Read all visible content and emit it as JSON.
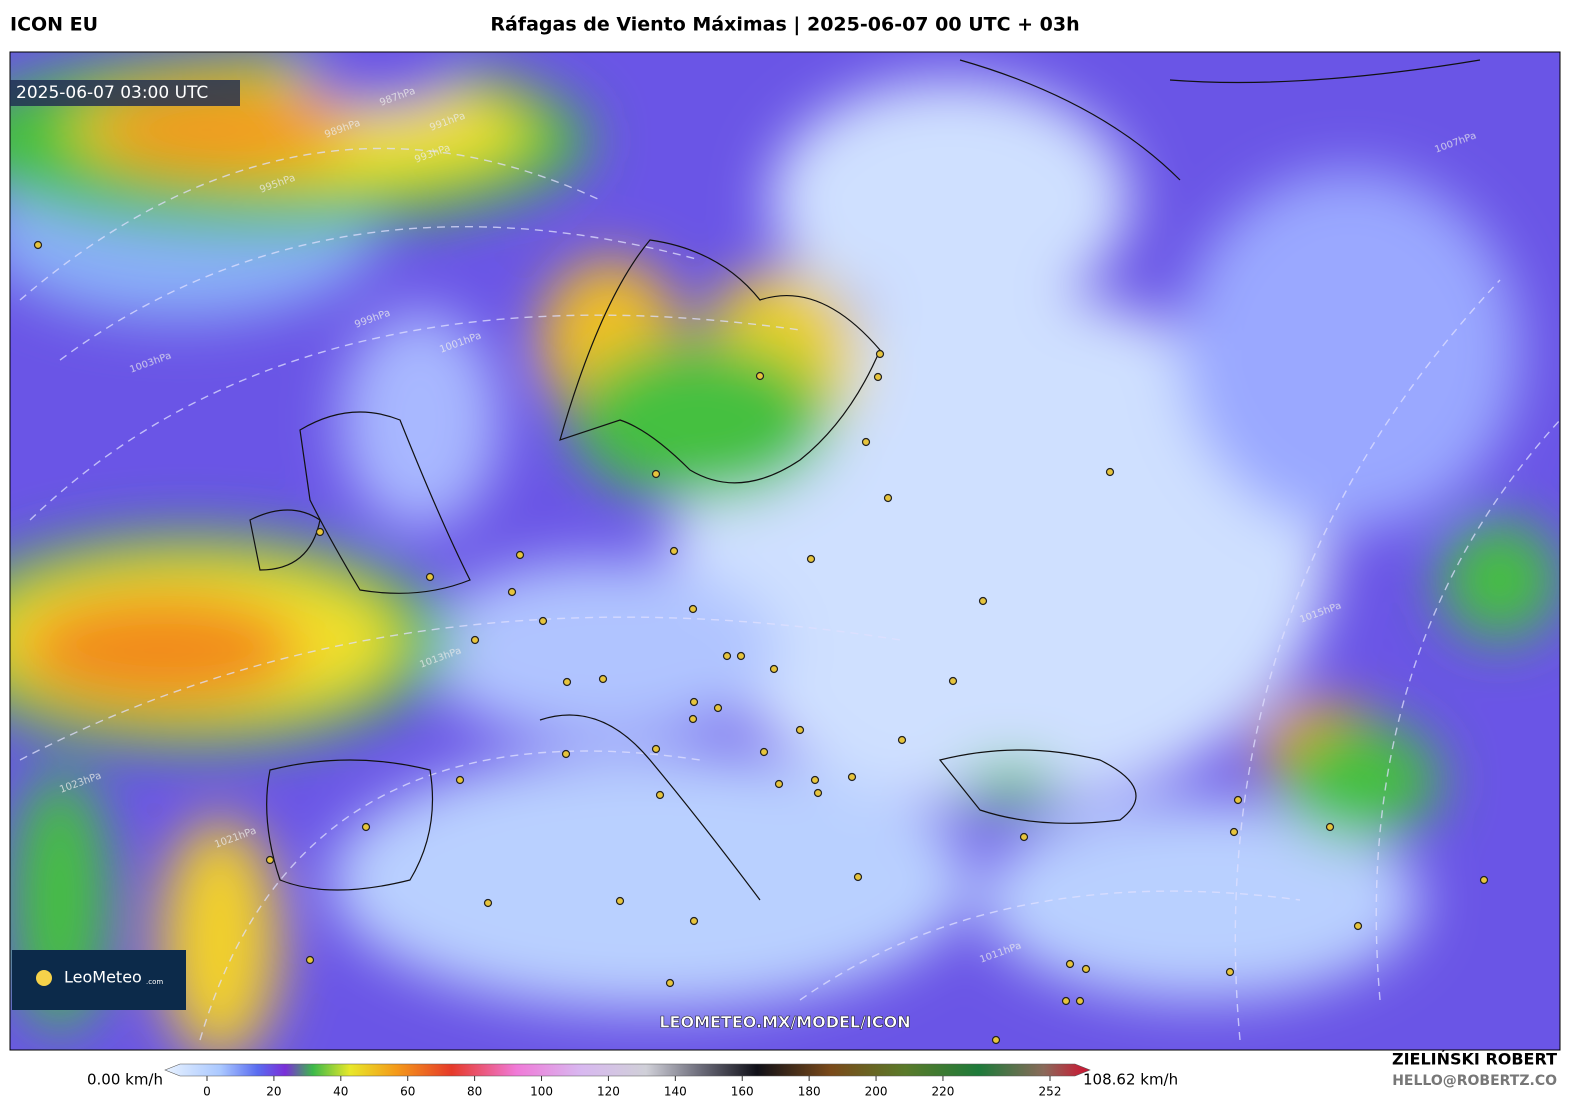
{
  "header": {
    "model": "ICON EU",
    "title": "Ráfagas de Viento Máximas | 2025-06-07 00 UTC + 03h"
  },
  "map": {
    "timestamp": "2025-06-07 03:00 UTC",
    "watermark": "LEOMETEO.MX/MODEL/ICON",
    "logo": {
      "name": "LeoMeteo",
      "suffix": ".com"
    },
    "isobar_labels": [
      "987hPa",
      "989hPa",
      "991hPa",
      "993hPa",
      "995hPa",
      "999hPa",
      "1001hPa",
      "1003hPa",
      "1013hPa",
      "1015hPa",
      "1021hPa",
      "1023hPa",
      "1011hPa",
      "1007hPa"
    ]
  },
  "colorbar": {
    "min_label": "0.00 km/h",
    "max_label": "108.62 km/h",
    "range": [
      0,
      252
    ],
    "ticks": [
      0,
      20,
      40,
      60,
      80,
      100,
      120,
      140,
      160,
      180,
      200,
      220,
      252
    ]
  },
  "credits": {
    "author": "ZIELIŃSKI ROBERT",
    "email": "HELLO@ROBERTZ.CO"
  }
}
